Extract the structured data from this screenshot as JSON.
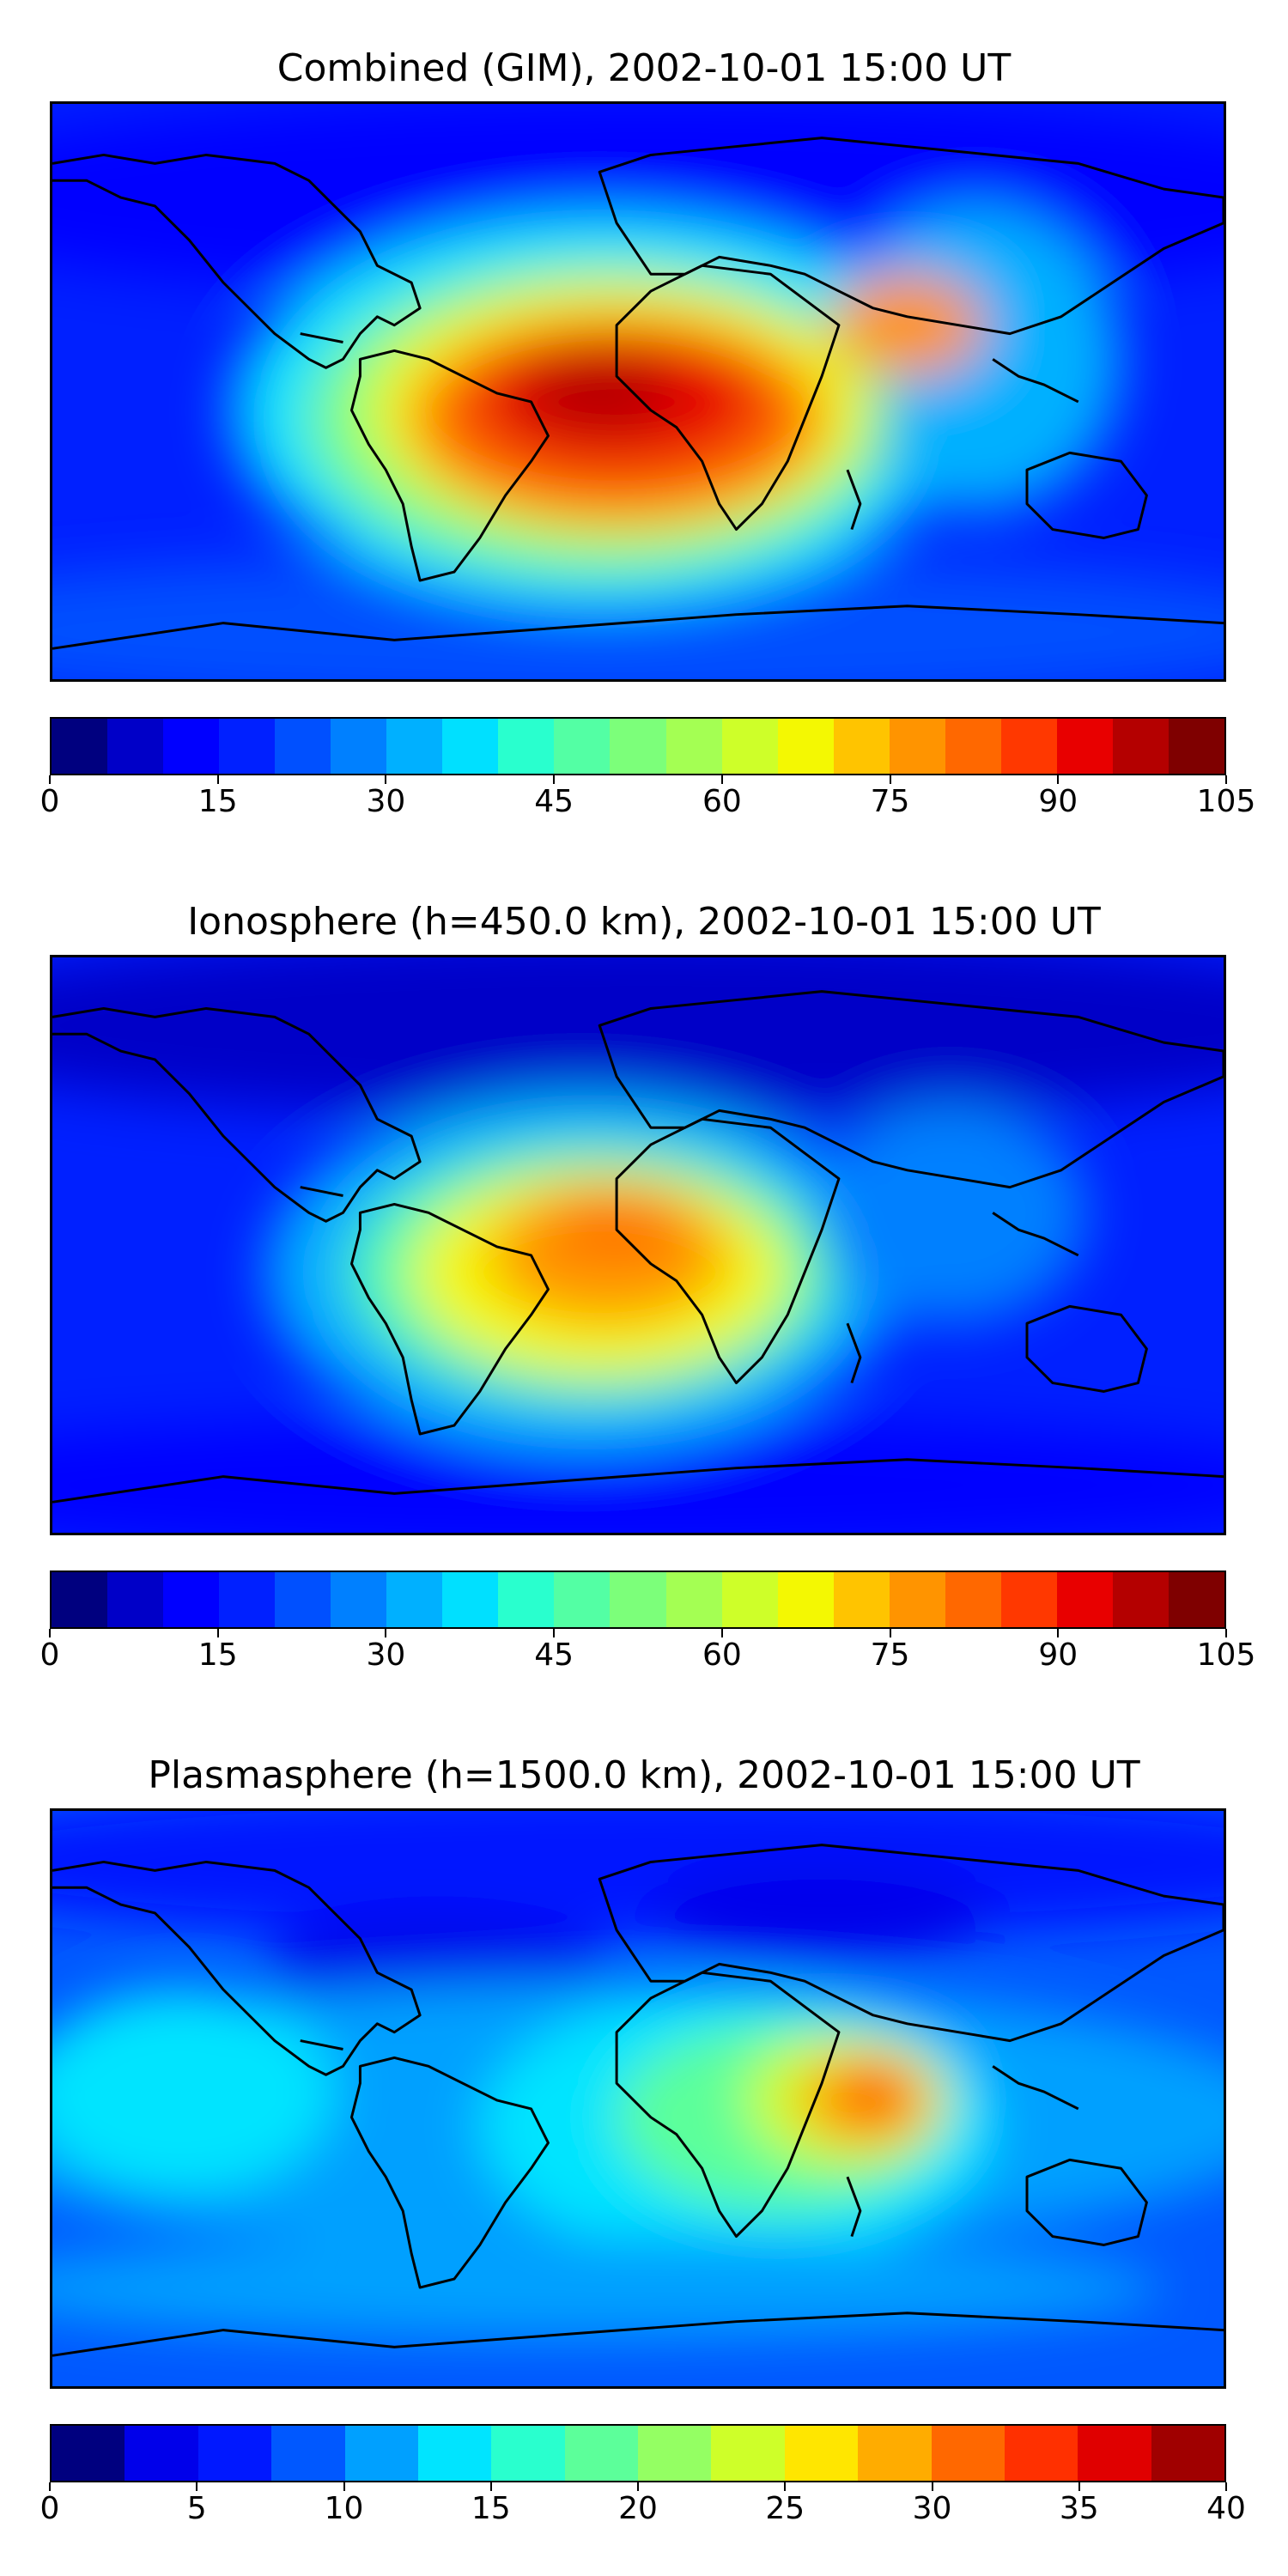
{
  "panels": [
    {
      "title": "Combined (GIM), 2002-10-01 15:00 UT",
      "colorbar": {
        "ticks": [
          "0",
          "15",
          "30",
          "45",
          "60",
          "75",
          "90",
          "105"
        ],
        "min": 0,
        "max": 105,
        "step": 5,
        "colors": [
          "#00007f",
          "#0000c8",
          "#0000ff",
          "#0020ff",
          "#0050ff",
          "#0080ff",
          "#00b0ff",
          "#00e0ff",
          "#29ffce",
          "#53ffa4",
          "#7cff7a",
          "#a4ff53",
          "#ceff29",
          "#f4f802",
          "#ffc400",
          "#ff9400",
          "#ff6800",
          "#ff3800",
          "#e80000",
          "#b40000",
          "#7f0000"
        ]
      }
    },
    {
      "title": "Ionosphere  (h=450.0 km), 2002-10-01 15:00 UT",
      "colorbar": {
        "ticks": [
          "0",
          "15",
          "30",
          "45",
          "60",
          "75",
          "90",
          "105"
        ],
        "min": 0,
        "max": 105,
        "step": 5,
        "colors": [
          "#00007f",
          "#0000c8",
          "#0000ff",
          "#0020ff",
          "#0050ff",
          "#0080ff",
          "#00b0ff",
          "#00e0ff",
          "#29ffce",
          "#53ffa4",
          "#7cff7a",
          "#a4ff53",
          "#ceff29",
          "#f4f802",
          "#ffc400",
          "#ff9400",
          "#ff6800",
          "#ff3800",
          "#e80000",
          "#b40000",
          "#7f0000"
        ]
      }
    },
    {
      "title": "Plasmasphere (h=1500.0 km), 2002-10-01 15:00 UT",
      "colorbar": {
        "ticks": [
          "0",
          "5",
          "10",
          "15",
          "20",
          "25",
          "30",
          "35",
          "40"
        ],
        "min": 0,
        "max": 40,
        "step": 2.5,
        "colors": [
          "#00007f",
          "#0000ea",
          "#0018ff",
          "#0058ff",
          "#00a0ff",
          "#00e4ff",
          "#29ffce",
          "#5cff9a",
          "#94ff63",
          "#ceff29",
          "#ffe600",
          "#ffac00",
          "#ff6800",
          "#ff3000",
          "#e00000",
          "#a00000"
        ]
      }
    }
  ]
}
